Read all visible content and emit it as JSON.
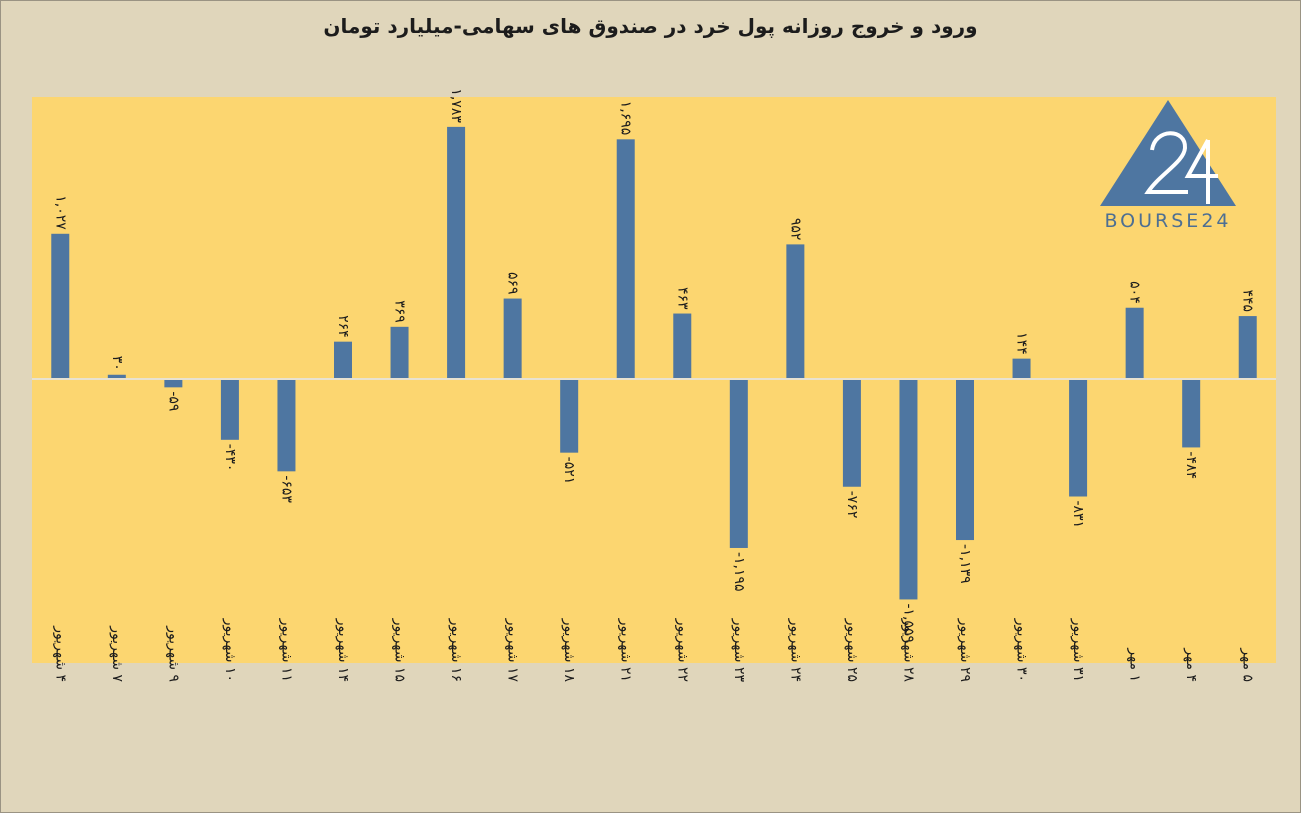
{
  "chart_data": {
    "type": "bar",
    "title": "ورود و خروج روزانه پول خرد در صندوق های سهامی-میلیارد تومان",
    "xlabel": "",
    "ylabel": "",
    "ylim": [
      -1600,
      2000
    ],
    "grid": false,
    "legend": "none",
    "categories": [
      "۴ شهریور",
      "۷ شهریور",
      "۹ شهریور",
      "۱۰ شهریور",
      "۱۱ شهریور",
      "۱۴ شهریور",
      "۱۵ شهریور",
      "۱۶ شهریور",
      "۱۷ شهریور",
      "۱۸ شهریور",
      "۲۱ شهریور",
      "۲۲ شهریور",
      "۲۳ شهریور",
      "۲۴ شهریور",
      "۲۵ شهریور",
      "۲۸ شهریور",
      "۲۹ شهریور",
      "۳۰ شهریور",
      "۳۱ شهریور",
      "۱ مهر",
      "۴ مهر",
      "۵ مهر"
    ],
    "series": [
      {
        "values": [
          1027,
          30,
          -59,
          -430,
          -653,
          264,
          369,
          1783,
          569,
          -521,
          1695,
          463,
          -1195,
          952,
          -762,
          -1559,
          -1139,
          144,
          -831,
          504,
          -484,
          445
        ]
      }
    ],
    "data_labels": [
      "۱,۰۲۷",
      "۳۰",
      "-۵۹",
      "-۴۳۰",
      "-۶۵۳",
      "۲۶۴",
      "۳۶۹",
      "۱,۷۸۳",
      "۵۶۹",
      "-۵۲۱",
      "۱,۶۹۵",
      "۴۶۳",
      "-۱,۱۹۵",
      "۹۵۲",
      "-۷۶۲",
      "-۱,۵۵۹",
      "-۱,۱۳۹",
      "۱۴۴",
      "-۸۳۱",
      "۵۰۴",
      "-۴۸۴",
      "۴۴۵"
    ],
    "colors": {
      "bar": "#4e76a1",
      "plot_bg": "#fcd670",
      "page_bg": "#e0d6bb",
      "zero_line": "#e8e2d0",
      "text": "#1c1c1c"
    }
  },
  "watermark": {
    "text": "BOURSE24",
    "mark": "24",
    "colors": {
      "triangle": "#4e76a1",
      "mark": "#ffffff",
      "text": "#4d6f93"
    }
  }
}
